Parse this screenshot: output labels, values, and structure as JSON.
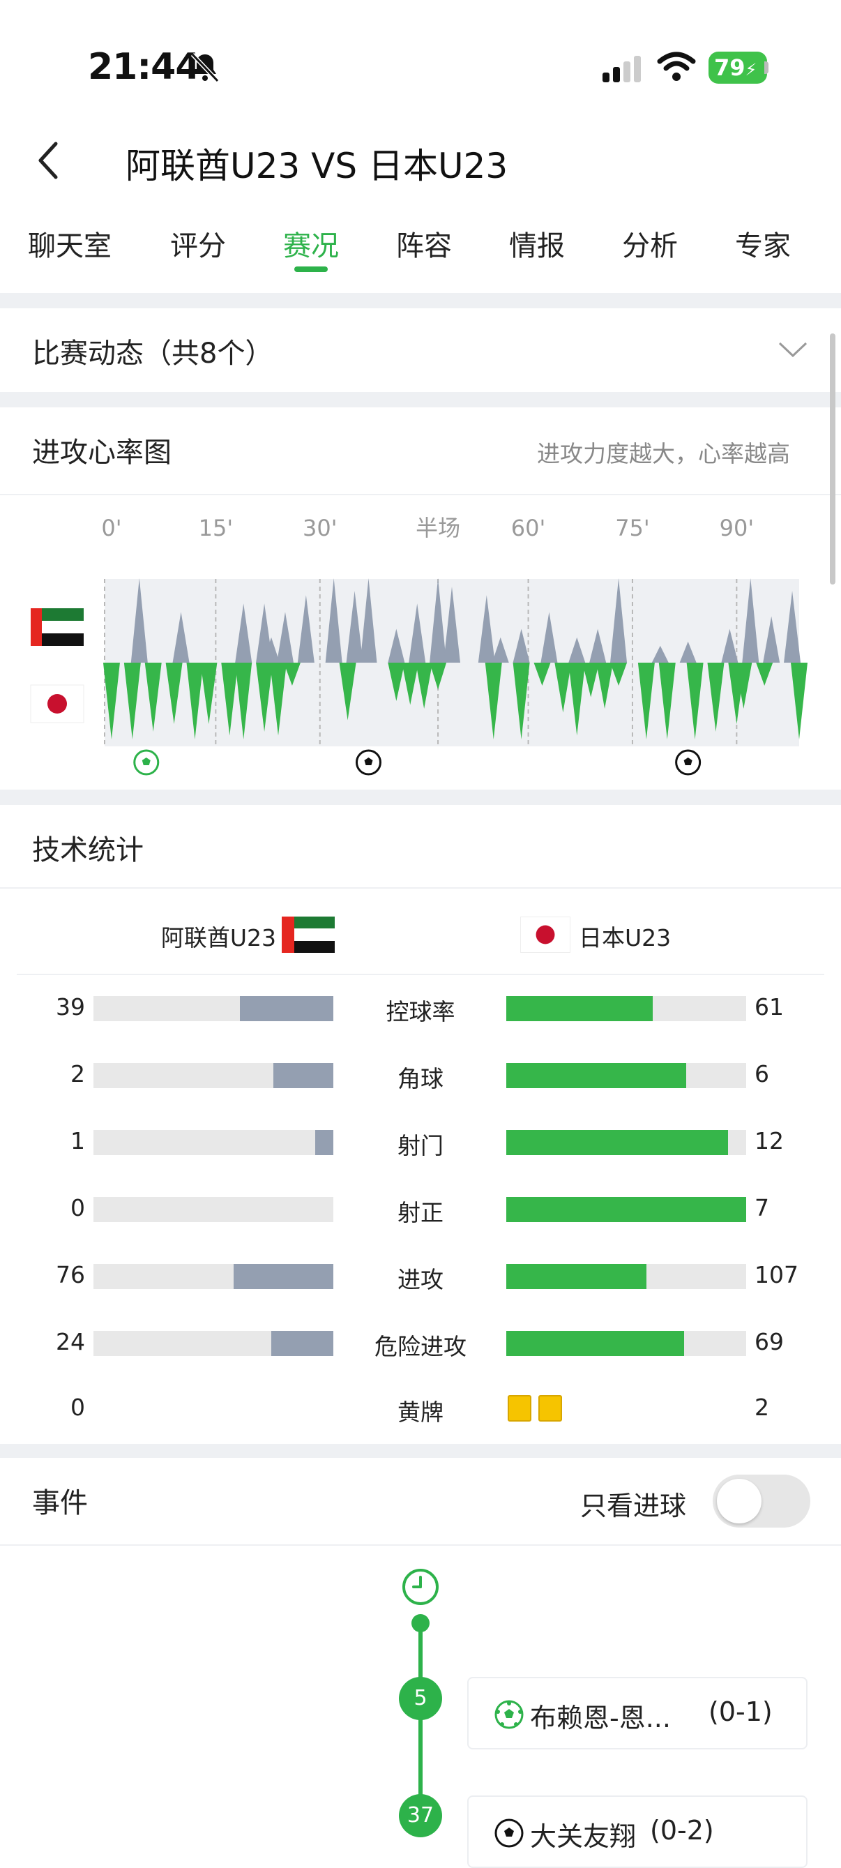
{
  "status_bar": {
    "time": "21:44",
    "battery": "79"
  },
  "header": {
    "title": "阿联酋U23 VS 日本U23"
  },
  "tabs": [
    {
      "label": "聊天室",
      "active": false
    },
    {
      "label": "评分",
      "active": false
    },
    {
      "label": "赛况",
      "active": true
    },
    {
      "label": "阵容",
      "active": false
    },
    {
      "label": "情报",
      "active": false
    },
    {
      "label": "分析",
      "active": false
    },
    {
      "label": "专家",
      "active": false
    }
  ],
  "match_dynamics": {
    "label": "比赛动态（共8个）"
  },
  "attack_chart": {
    "title": "进攻心率图",
    "note": "进攻力度越大，心率越高",
    "ticks": [
      "0'",
      "15'",
      "30'",
      "半场",
      "60'",
      "75'",
      "90'"
    ]
  },
  "chart_data": {
    "type": "area",
    "x_ticks": [
      "0'",
      "15'",
      "30'",
      "半场",
      "60'",
      "75'",
      "90'"
    ],
    "series": [
      {
        "team": "home",
        "color": "#949fb1",
        "peaks": [
          [
            5,
            1.0
          ],
          [
            11,
            0.6
          ],
          [
            20,
            0.7
          ],
          [
            23,
            0.7
          ],
          [
            24,
            0.3
          ],
          [
            26,
            0.6
          ],
          [
            29,
            0.8
          ],
          [
            33,
            1.0
          ],
          [
            36,
            0.85
          ],
          [
            38,
            1.0
          ],
          [
            42,
            0.4
          ],
          [
            45,
            0.7
          ],
          [
            48,
            1.0
          ],
          [
            50,
            0.9
          ],
          [
            55,
            0.8
          ],
          [
            57,
            0.3
          ],
          [
            60,
            0.4
          ],
          [
            64,
            0.6
          ],
          [
            68,
            0.3
          ],
          [
            71,
            0.4
          ],
          [
            74,
            1.0
          ],
          [
            80,
            0.2
          ],
          [
            84,
            0.25
          ],
          [
            90,
            0.4
          ],
          [
            93,
            1.0
          ],
          [
            96,
            0.55
          ],
          [
            99,
            0.85
          ]
        ]
      },
      {
        "team": "away",
        "color": "#36b64a",
        "peaks": [
          [
            1,
            1.0
          ],
          [
            4,
            1.0
          ],
          [
            7,
            0.9
          ],
          [
            10,
            0.8
          ],
          [
            13,
            1.0
          ],
          [
            15,
            0.8
          ],
          [
            18,
            0.95
          ],
          [
            20,
            1.0
          ],
          [
            23,
            0.9
          ],
          [
            25,
            0.95
          ],
          [
            27,
            0.3
          ],
          [
            35,
            0.75
          ],
          [
            42,
            0.5
          ],
          [
            44,
            0.55
          ],
          [
            46,
            0.6
          ],
          [
            48,
            0.35
          ],
          [
            56,
            1.0
          ],
          [
            60,
            1.0
          ],
          [
            63,
            0.3
          ],
          [
            66,
            0.65
          ],
          [
            68,
            0.95
          ],
          [
            70,
            0.45
          ],
          [
            72,
            0.6
          ],
          [
            74,
            0.3
          ],
          [
            78,
            1.0
          ],
          [
            81,
            1.0
          ],
          [
            85,
            1.0
          ],
          [
            88,
            0.9
          ],
          [
            91,
            0.8
          ],
          [
            92,
            0.6
          ],
          [
            95,
            0.3
          ],
          [
            100,
            1.0
          ]
        ]
      }
    ],
    "goals": [
      {
        "minute": 5,
        "team": "away"
      },
      {
        "minute": 37,
        "team": "away"
      },
      {
        "minute": 83,
        "team": "away"
      }
    ]
  },
  "tech_stats": {
    "title": "技术统计",
    "home_team": "阿联酋U23",
    "away_team": "日本U23",
    "rows": [
      {
        "name": "控球率",
        "home": "39",
        "away": "61",
        "home_frac": 0.39,
        "away_frac": 0.61
      },
      {
        "name": "角球",
        "home": "2",
        "away": "6",
        "home_frac": 0.25,
        "away_frac": 0.75
      },
      {
        "name": "射门",
        "home": "1",
        "away": "12",
        "home_frac": 0.077,
        "away_frac": 0.923
      },
      {
        "name": "射正",
        "home": "0",
        "away": "7",
        "home_frac": 0.0,
        "away_frac": 1.0
      },
      {
        "name": "进攻",
        "home": "76",
        "away": "107",
        "home_frac": 0.415,
        "away_frac": 0.585
      },
      {
        "name": "危险进攻",
        "home": "24",
        "away": "69",
        "home_frac": 0.258,
        "away_frac": 0.742
      }
    ],
    "yellow_cards": {
      "name": "黄牌",
      "home": "0",
      "away": "2"
    }
  },
  "events": {
    "title": "事件",
    "toggle_label": "只看进球",
    "toggle_on": false,
    "items": [
      {
        "minute": "5",
        "player": "布赖恩-恩...",
        "score": "(0-1)"
      },
      {
        "minute": "37",
        "player": "大关友翔",
        "score": "(0-2)"
      }
    ]
  },
  "colors": {
    "accent": "#2db24a",
    "home_bar": "#949fb1",
    "away_bar": "#36b64a",
    "yellow_card": "#f6c400"
  }
}
